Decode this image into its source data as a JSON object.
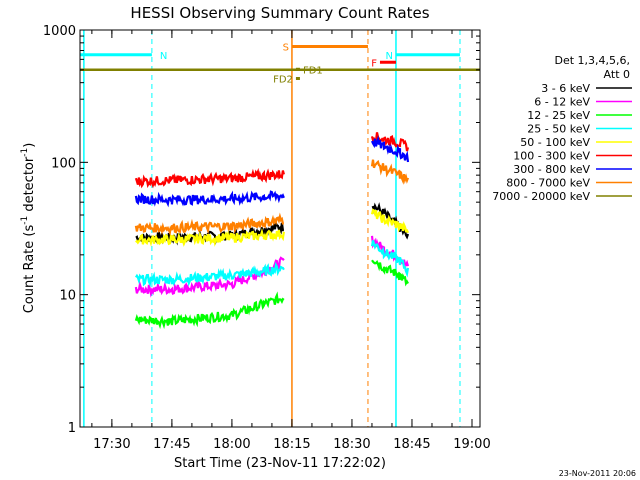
{
  "chart_data": {
    "type": "line",
    "title": "HESSI Observing Summary Count Rates",
    "xlabel": "Start Time (23-Nov-11 17:22:02)",
    "ylabel_main": "Count Rate (s",
    "ylabel_sup1": "-1",
    "ylabel_mid": " detector",
    "ylabel_sup2": "-1",
    "ylabel_end": ")",
    "y_scale": "log",
    "ylim": [
      1,
      1000
    ],
    "xlim": [
      "17:22:02",
      "19:02:00"
    ],
    "x_ticks": [
      "17:30",
      "17:45",
      "18:00",
      "18:15",
      "18:30",
      "18:45",
      "19:00"
    ],
    "y_ticks": [
      "1",
      "10",
      "100",
      "1000"
    ],
    "legend_header": [
      "Det 1,3,4,5,6,",
      "Att 0"
    ],
    "legend_placement": "right",
    "footer_date": "23-Nov-2011 20:06",
    "series": [
      {
        "name": "3 - 6 keV",
        "color": "#000000",
        "segments": [
          {
            "x": [
              "17:36",
              "17:45",
              "18:00",
              "18:08",
              "18:13"
            ],
            "y": [
              27,
              27,
              28,
              31,
              33
            ]
          },
          {
            "x": [
              "18:35",
              "18:38",
              "18:42",
              "18:44"
            ],
            "y": [
              48,
              41,
              32,
              27
            ]
          }
        ]
      },
      {
        "name": "6 - 12 keV",
        "color": "#ff00ff",
        "segments": [
          {
            "x": [
              "17:36",
              "17:45",
              "18:00",
              "18:08",
              "18:13"
            ],
            "y": [
              11,
              11,
              12,
              15,
              18
            ]
          },
          {
            "x": [
              "18:35",
              "18:38",
              "18:42",
              "18:44"
            ],
            "y": [
              26,
              22,
              19,
              16
            ]
          }
        ]
      },
      {
        "name": "12 - 25 keV",
        "color": "#00ff00",
        "segments": [
          {
            "x": [
              "17:36",
              "17:45",
              "18:00",
              "18:08",
              "18:13"
            ],
            "y": [
              6.5,
              6.3,
              7,
              8.5,
              9.5
            ]
          },
          {
            "x": [
              "18:35",
              "18:38",
              "18:42",
              "18:44"
            ],
            "y": [
              19,
              16,
              14,
              12
            ]
          }
        ]
      },
      {
        "name": "25 - 50 keV",
        "color": "#00ffff",
        "segments": [
          {
            "x": [
              "17:36",
              "17:45",
              "18:00",
              "18:08",
              "18:13"
            ],
            "y": [
              13,
              13,
              14,
              15,
              16
            ]
          },
          {
            "x": [
              "18:35",
              "18:38",
              "18:42",
              "18:44"
            ],
            "y": [
              25,
              21,
              18,
              15
            ]
          }
        ]
      },
      {
        "name": "50 - 100 keV",
        "color": "#ffff00",
        "segments": [
          {
            "x": [
              "17:36",
              "17:45",
              "18:00",
              "18:08",
              "18:13"
            ],
            "y": [
              26,
              26,
              27,
              28,
              29
            ]
          },
          {
            "x": [
              "18:35",
              "18:38",
              "18:42",
              "18:44"
            ],
            "y": [
              42,
              37,
              33,
              30
            ]
          }
        ]
      },
      {
        "name": "100 - 300 keV",
        "color": "#ff0000",
        "segments": [
          {
            "x": [
              "17:36",
              "17:45",
              "18:00",
              "18:08",
              "18:13"
            ],
            "y": [
              72,
              73,
              76,
              79,
              82
            ]
          },
          {
            "x": [
              "18:35",
              "18:38",
              "18:42",
              "18:44"
            ],
            "y": [
              160,
              150,
              140,
              130
            ]
          }
        ]
      },
      {
        "name": "300 - 800 keV",
        "color": "#0000ff",
        "segments": [
          {
            "x": [
              "17:36",
              "17:45",
              "18:00",
              "18:08",
              "18:13"
            ],
            "y": [
              53,
              52,
              53,
              55,
              56
            ]
          },
          {
            "x": [
              "18:35",
              "18:38",
              "18:42",
              "18:44"
            ],
            "y": [
              145,
              132,
              118,
              108
            ]
          }
        ]
      },
      {
        "name": "800 - 7000 keV",
        "color": "#ff8000",
        "segments": [
          {
            "x": [
              "17:36",
              "17:45",
              "18:00",
              "18:08",
              "18:13"
            ],
            "y": [
              32,
              32,
              33,
              35,
              37
            ]
          },
          {
            "x": [
              "18:35",
              "18:38",
              "18:42",
              "18:44"
            ],
            "y": [
              100,
              90,
              80,
              73
            ]
          }
        ]
      },
      {
        "name": "7000 - 20000 keV",
        "color": "#808000",
        "segments": [
          {
            "x": [
              "17:22:02",
              "19:02:00"
            ],
            "y": [
              500,
              500
            ]
          }
        ]
      }
    ],
    "state_bars": [
      {
        "label": "N",
        "color": "#00ffff",
        "x": [
          "17:22:02",
          "17:40"
        ],
        "y": 650
      },
      {
        "label": "N",
        "color": "#00ffff",
        "x": [
          "18:41",
          "18:57"
        ],
        "y": 650
      },
      {
        "label": "S",
        "color": "#ff8000",
        "x": [
          "18:15",
          "18:34"
        ],
        "y": 750
      },
      {
        "label": "F",
        "color": "#ff0000",
        "x": [
          "18:37",
          "18:41"
        ],
        "y": 570
      },
      {
        "label": "FD1",
        "color": "#808000",
        "x": [
          "18:16",
          "18:17"
        ],
        "y": 505
      },
      {
        "label": "FD2",
        "color": "#808000",
        "x": [
          "18:16",
          "18:17"
        ],
        "y": 430
      }
    ],
    "vertical_markers": [
      {
        "x": "17:23",
        "color": "#00ffff",
        "style": "solid"
      },
      {
        "x": "17:40",
        "color": "#00ffff",
        "style": "dashed"
      },
      {
        "x": "18:15",
        "color": "#ff8000",
        "style": "solid"
      },
      {
        "x": "18:34",
        "color": "#ff8000",
        "style": "dashed"
      },
      {
        "x": "18:41",
        "color": "#00ffff",
        "style": "solid"
      },
      {
        "x": "18:57",
        "color": "#00ffff",
        "style": "dashed"
      }
    ]
  }
}
